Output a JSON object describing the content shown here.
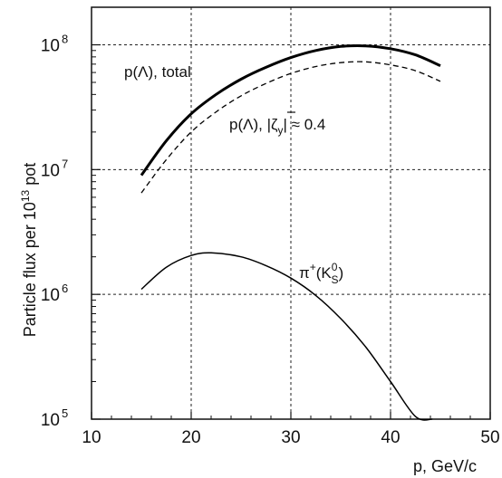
{
  "chart_data": {
    "type": "line",
    "xlabel": "p, GeV/c",
    "ylabel_parts": {
      "main": "Particle flux per 10",
      "exp": "13",
      "tail": " pot"
    },
    "xlim": [
      10,
      50
    ],
    "ylim": [
      100000,
      200000000
    ],
    "yscale": "log",
    "grid": true,
    "xticks": [
      {
        "v": 10,
        "label": "10"
      },
      {
        "v": 20,
        "label": "20"
      },
      {
        "v": 30,
        "label": "30"
      },
      {
        "v": 40,
        "label": "40"
      },
      {
        "v": 50,
        "label": "50"
      }
    ],
    "yticks": [
      {
        "v": 100000,
        "base": "10",
        "exp": "5"
      },
      {
        "v": 1000000,
        "base": "10",
        "exp": "6"
      },
      {
        "v": 10000000,
        "base": "10",
        "exp": "7"
      },
      {
        "v": 100000000,
        "base": "10",
        "exp": "8"
      }
    ],
    "series": [
      {
        "key": "p-lambda-total",
        "style": "thick-solid",
        "x": [
          15,
          17.5,
          20,
          22.5,
          25,
          27.5,
          30,
          32.5,
          35,
          37.5,
          40,
          42.5,
          45
        ],
        "y": [
          9000000,
          17000000,
          28000000,
          40000000,
          53000000,
          66000000,
          79000000,
          90000000,
          97000000,
          98000000,
          93000000,
          83000000,
          68000000
        ]
      },
      {
        "key": "p-lambda-polarized",
        "style": "dashed",
        "x": [
          15,
          17.5,
          20,
          22.5,
          25,
          27.5,
          30,
          32.5,
          35,
          37.5,
          40,
          42.5,
          45
        ],
        "y": [
          6500000,
          12000000,
          20000000,
          29000000,
          39000000,
          49000000,
          59000000,
          67000000,
          72000000,
          73000000,
          69000000,
          62000000,
          51000000
        ]
      },
      {
        "key": "pi-plus-k0s",
        "style": "thin-solid",
        "x": [
          15,
          17.5,
          20,
          22,
          25,
          27.5,
          30,
          32.5,
          35,
          37.5,
          40,
          42.5,
          44.2
        ],
        "y": [
          1100000,
          1650000,
          2050000,
          2150000,
          2000000,
          1700000,
          1350000,
          980000,
          640000,
          380000,
          200000,
          105000,
          100000
        ]
      }
    ],
    "annotations": {
      "total": {
        "pre": "p(",
        "sym": "Λ",
        "post": "), total"
      },
      "polarized": {
        "pre": "p(",
        "sym": "Λ",
        "mid": "), |",
        "zeta": "ζ",
        "sub": "y",
        "post": "| ≈ 0.4"
      },
      "pion": {
        "pi": "π",
        "sup": "+",
        "open": "(K",
        "k0sup": "0",
        "k0sub": "S",
        "close": ")"
      }
    }
  }
}
